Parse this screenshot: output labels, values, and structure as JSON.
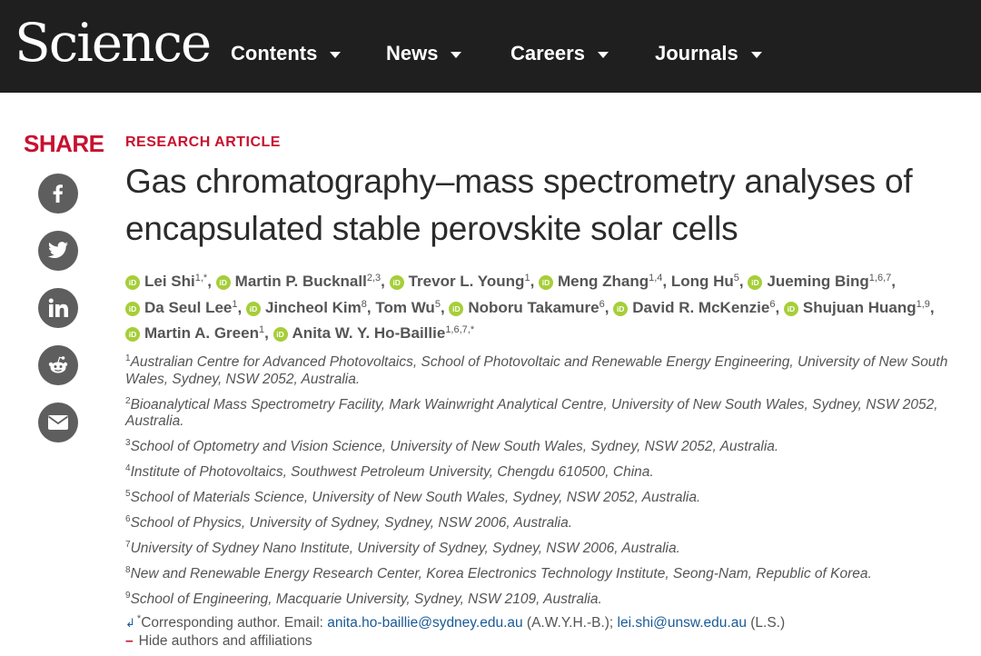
{
  "header": {
    "logo": "Science",
    "nav": [
      "Contents",
      "News",
      "Careers",
      "Journals"
    ]
  },
  "share": {
    "label": "SHARE",
    "buttons": [
      "facebook-icon",
      "twitter-icon",
      "linkedin-icon",
      "reddit-icon",
      "email-icon"
    ]
  },
  "article": {
    "type": "RESEARCH ARTICLE",
    "title": "Gas chromatography–mass spectrometry analyses of encapsulated stable perovskite solar cells",
    "authors": [
      {
        "name": "Lei Shi",
        "sup": "1,*",
        "orcid": true
      },
      {
        "name": "Martin P. Bucknall",
        "sup": "2,3",
        "orcid": true
      },
      {
        "name": "Trevor L. Young",
        "sup": "1",
        "orcid": true
      },
      {
        "name": "Meng Zhang",
        "sup": "1,4",
        "orcid": true
      },
      {
        "name": "Long Hu",
        "sup": "5",
        "orcid": false
      },
      {
        "name": "Jueming Bing",
        "sup": "1,6,7",
        "orcid": true
      },
      {
        "name": "Da Seul Lee",
        "sup": "1",
        "orcid": true
      },
      {
        "name": "Jincheol Kim",
        "sup": "8",
        "orcid": true
      },
      {
        "name": "Tom Wu",
        "sup": "5",
        "orcid": false
      },
      {
        "name": "Noboru Takamure",
        "sup": "6",
        "orcid": true
      },
      {
        "name": "David R. McKenzie",
        "sup": "6",
        "orcid": true
      },
      {
        "name": "Shujuan Huang",
        "sup": "1,9",
        "orcid": true
      },
      {
        "name": "Martin A. Green",
        "sup": "1",
        "orcid": true
      },
      {
        "name": "Anita W. Y. Ho-Baillie",
        "sup": "1,6,7,*",
        "orcid": true
      }
    ],
    "orcid_label": "iD",
    "affiliations": [
      {
        "num": "1",
        "text": "Australian Centre for Advanced Photovoltaics, School of Photovoltaic and Renewable Energy Engineering, University of New South Wales, Sydney, NSW 2052, Australia."
      },
      {
        "num": "2",
        "text": "Bioanalytical Mass Spectrometry Facility, Mark Wainwright Analytical Centre, University of New South Wales, Sydney, NSW 2052, Australia."
      },
      {
        "num": "3",
        "text": "School of Optometry and Vision Science, University of New South Wales, Sydney, NSW 2052, Australia."
      },
      {
        "num": "4",
        "text": "Institute of Photovoltaics, Southwest Petroleum University, Chengdu 610500, China."
      },
      {
        "num": "5",
        "text": "School of Materials Science, University of New South Wales, Sydney, NSW 2052, Australia."
      },
      {
        "num": "6",
        "text": "School of Physics, University of Sydney, Sydney, NSW 2006, Australia."
      },
      {
        "num": "7",
        "text": "University of Sydney Nano Institute, University of Sydney, Sydney, NSW 2006, Australia."
      },
      {
        "num": "8",
        "text": "New and Renewable Energy Research Center, Korea Electronics Technology Institute, Seong-Nam, Republic of Korea."
      },
      {
        "num": "9",
        "text": "School of Engineering, Macquarie University, Sydney, NSW 2109, Australia."
      }
    ],
    "corresponding": {
      "arrow": "↲",
      "star": "*",
      "prefix": "Corresponding author. Email: ",
      "email1": "anita.ho-baillie@sydney.edu.au",
      "note1": " (A.W.Y.H.-B.); ",
      "email2": "lei.shi@unsw.edu.au",
      "note2": " (L.S.)"
    },
    "hide_link": {
      "minus": "–",
      "label": "Hide authors and affiliations"
    }
  },
  "colors": {
    "accent": "#c8102e",
    "header_bg": "#1f1f1f",
    "orcid": "#a6ce39",
    "link": "#1a5a96"
  }
}
